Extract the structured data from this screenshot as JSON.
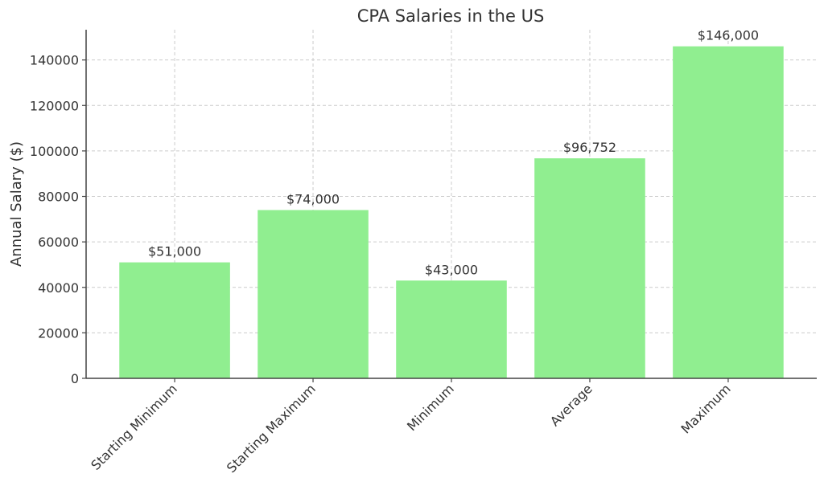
{
  "chart_data": {
    "type": "bar",
    "title": "CPA Salaries in the US",
    "xlabel": "",
    "ylabel": "Annual Salary ($)",
    "categories": [
      "Starting Minimum",
      "Starting Maximum",
      "Minimum",
      "Average",
      "Maximum"
    ],
    "values": [
      51000,
      74000,
      43000,
      96752,
      146000
    ],
    "data_labels": [
      "$51,000",
      "$74,000",
      "$43,000",
      "$96,752",
      "$146,000"
    ],
    "yticks": [
      0,
      20000,
      40000,
      60000,
      80000,
      100000,
      120000,
      140000
    ],
    "ytick_labels": [
      "0",
      "20000",
      "40000",
      "60000",
      "80000",
      "100000",
      "120000",
      "140000"
    ],
    "ylim": [
      0,
      153300
    ],
    "grid": true,
    "bar_color": "#90ee90"
  }
}
